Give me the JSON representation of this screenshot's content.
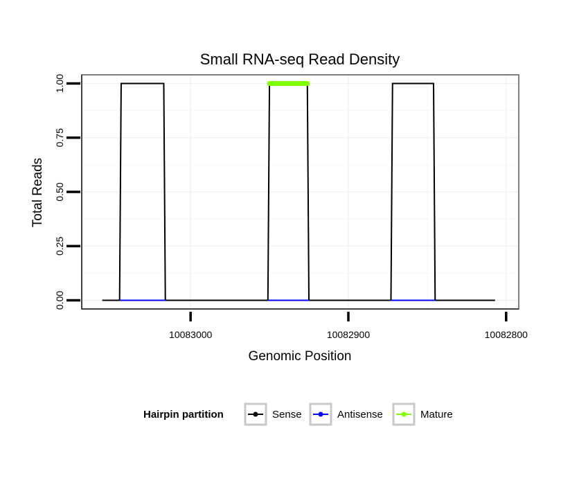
{
  "chart_data": {
    "type": "line",
    "title": "Small RNA-seq Read Density",
    "xlabel": "Genomic Position",
    "ylabel": "Total Reads",
    "x_reversed": true,
    "xlim": [
      10083069,
      10082792
    ],
    "ylim": [
      -0.04,
      1.04
    ],
    "x_ticks": [
      10083000,
      10082900,
      10082800
    ],
    "x_tick_labels": [
      "10083000",
      "10082900",
      "10082800"
    ],
    "y_ticks": [
      0,
      0.25,
      0.5,
      0.75,
      1
    ],
    "y_tick_labels": [
      "0.00",
      "0.25",
      "0.50",
      "0.75",
      "1.00"
    ],
    "legend_title": "Hairpin partition",
    "legend_position": "bottom",
    "series": [
      {
        "name": "Sense",
        "color": "#000000",
        "x": [
          10083056,
          10083045,
          10083044,
          10083017,
          10083016,
          10082951,
          10082950,
          10082926,
          10082925,
          10082873,
          10082872,
          10082846,
          10082845,
          10082807
        ],
        "y": [
          0,
          0,
          1,
          1,
          0,
          0,
          1,
          1,
          0,
          0,
          1,
          1,
          0,
          0
        ]
      },
      {
        "name": "Antisense",
        "color": "#0000ff",
        "segments": [
          [
            10083045,
            10083016
          ],
          [
            10082951,
            10082925
          ],
          [
            10082873,
            10082845
          ]
        ],
        "y": 0
      },
      {
        "name": "Mature",
        "color": "#7fff00",
        "x": [
          10082950,
          10082926
        ],
        "y": [
          1,
          1
        ]
      }
    ]
  }
}
